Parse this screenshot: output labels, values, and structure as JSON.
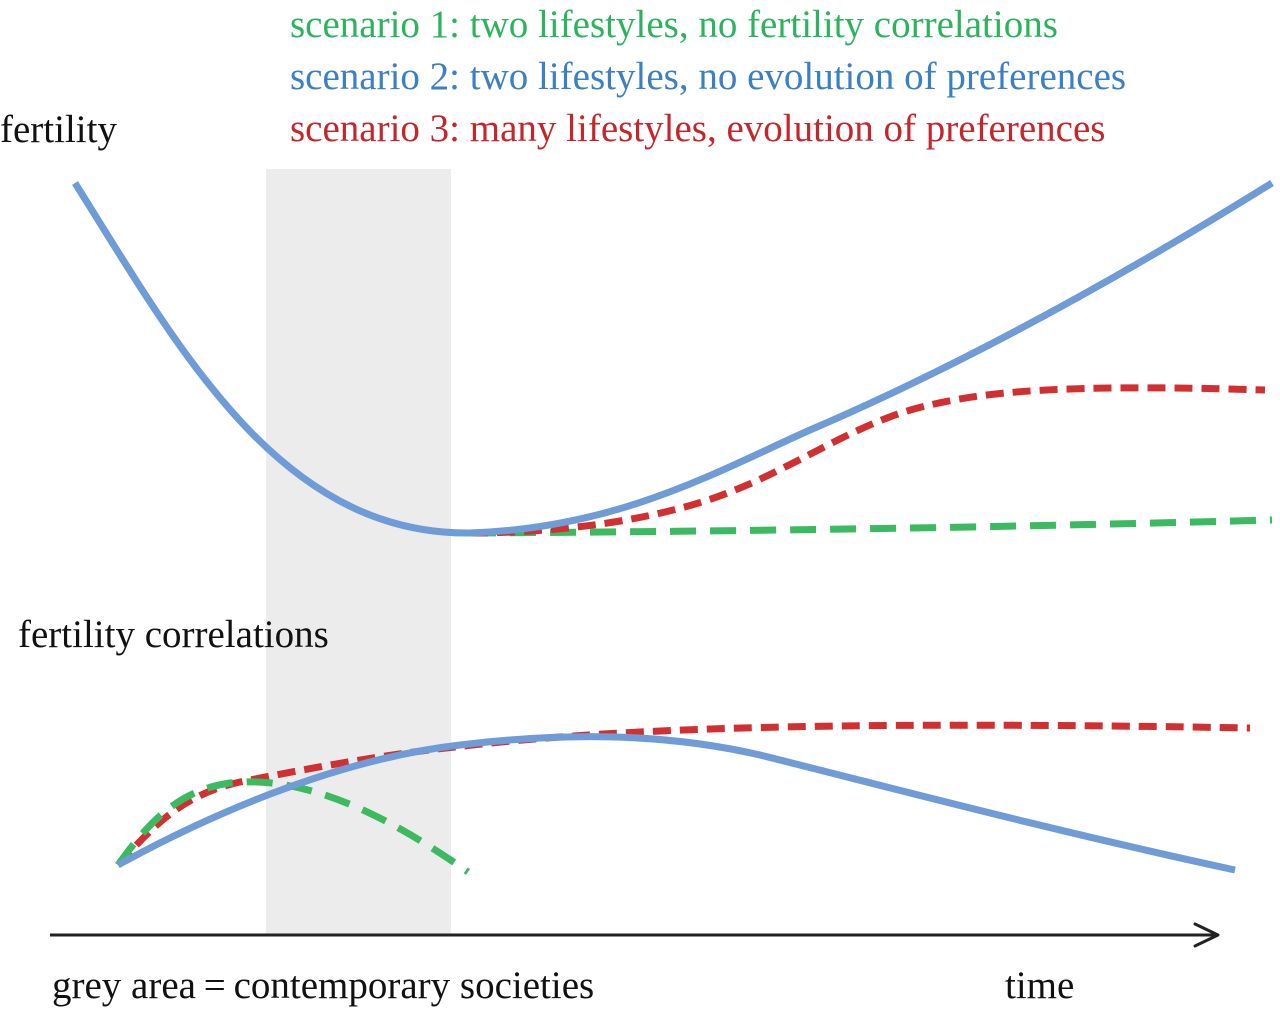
{
  "legend": [
    {
      "label": "scenario 1: two lifestyles, no fertility correlations",
      "color": "#2db35d"
    },
    {
      "label": "scenario 2: two lifestyles, no evolution of preferences",
      "color": "#3b7fc4"
    },
    {
      "label": "scenario 3: many lifestyles, evolution of preferences",
      "color": "#c4262b"
    }
  ],
  "labels": {
    "fertility": "fertility",
    "fertility_correlations": "fertility correlations",
    "grey_area_note": "grey area = contemporary societies",
    "time_axis": "time"
  },
  "colors": {
    "scenario1_line": "#3cba61",
    "scenario2_line": "#6f9bd6",
    "scenario3_line": "#d12f30",
    "grey_band": "#ececec",
    "axis": "#222222"
  }
}
